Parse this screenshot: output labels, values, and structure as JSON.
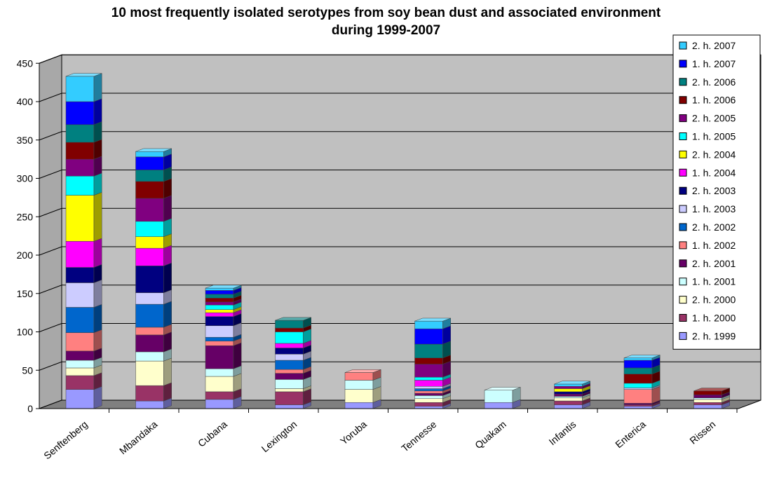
{
  "chart_data": {
    "type": "bar",
    "stacked": true,
    "three_d": true,
    "title": "10 most frequently isolated serotypes from soy bean dust and associated environment",
    "subtitle": "during 1999-2007",
    "xlabel": "",
    "ylabel": "",
    "ylim": [
      0,
      450
    ],
    "yticks": [
      0,
      50,
      100,
      150,
      200,
      250,
      300,
      350,
      400,
      450
    ],
    "grid": true,
    "legend_position": "top-right",
    "categories": [
      "Senftenberg",
      "Mbandaka",
      "Cubana",
      "Lexington",
      "Yoruba",
      "Tennesse",
      "Quakam",
      "Infantis",
      "Enterica",
      "Rissen"
    ],
    "series": [
      {
        "name": "2. h. 1999",
        "color": "#9999ff",
        "values": [
          25,
          10,
          12,
          5,
          8,
          3,
          8,
          5,
          3,
          5
        ]
      },
      {
        "name": "1. h. 2000",
        "color": "#993366",
        "values": [
          18,
          20,
          10,
          17,
          0,
          5,
          0,
          5,
          2,
          3
        ]
      },
      {
        "name": "2. h. 2000",
        "color": "#ffffcc",
        "values": [
          10,
          32,
          20,
          4,
          17,
          5,
          0,
          4,
          0,
          4
        ]
      },
      {
        "name": "1. h. 2001",
        "color": "#ccffff",
        "values": [
          10,
          12,
          10,
          12,
          12,
          4,
          16,
          2,
          0,
          2
        ]
      },
      {
        "name": "2. h. 2001",
        "color": "#660066",
        "values": [
          12,
          22,
          30,
          8,
          0,
          3,
          0,
          3,
          2,
          4
        ]
      },
      {
        "name": "1. h. 2002",
        "color": "#ff8080",
        "values": [
          24,
          10,
          6,
          5,
          10,
          3,
          0,
          0,
          18,
          0
        ]
      },
      {
        "name": "2. h. 2002",
        "color": "#0066cc",
        "values": [
          33,
          30,
          5,
          12,
          0,
          3,
          0,
          0,
          0,
          0
        ]
      },
      {
        "name": "1. h. 2003",
        "color": "#ccccff",
        "values": [
          32,
          15,
          15,
          8,
          0,
          3,
          0,
          0,
          2,
          0
        ]
      },
      {
        "name": "2. h. 2003",
        "color": "#000080",
        "values": [
          20,
          35,
          12,
          8,
          0,
          0,
          0,
          3,
          0,
          0
        ]
      },
      {
        "name": "1. h. 2004",
        "color": "#ff00ff",
        "values": [
          34,
          23,
          5,
          6,
          0,
          8,
          0,
          0,
          0,
          0
        ]
      },
      {
        "name": "2. h. 2004",
        "color": "#ffff00",
        "values": [
          60,
          15,
          4,
          0,
          0,
          0,
          0,
          4,
          0,
          0
        ]
      },
      {
        "name": "1. h. 2005",
        "color": "#00ffff",
        "values": [
          25,
          20,
          6,
          15,
          0,
          4,
          0,
          0,
          6,
          0
        ]
      },
      {
        "name": "2. h. 2005",
        "color": "#800080",
        "values": [
          22,
          30,
          4,
          0,
          0,
          17,
          0,
          3,
          0,
          0
        ]
      },
      {
        "name": "1. h. 2006",
        "color": "#800000",
        "values": [
          22,
          22,
          5,
          5,
          0,
          8,
          0,
          0,
          12,
          5
        ]
      },
      {
        "name": "2. h. 2006",
        "color": "#008080",
        "values": [
          23,
          15,
          5,
          10,
          0,
          18,
          0,
          0,
          8,
          0
        ]
      },
      {
        "name": "1. h. 2007",
        "color": "#0000ff",
        "values": [
          30,
          17,
          5,
          0,
          0,
          20,
          0,
          0,
          10,
          0
        ]
      },
      {
        "name": "2. h. 2007",
        "color": "#33ccff",
        "values": [
          33,
          7,
          3,
          0,
          0,
          10,
          0,
          3,
          3,
          0
        ]
      }
    ]
  },
  "colors": {
    "wall": "#c0c0c0",
    "floor": "#808080",
    "gridline": "#000000"
  }
}
